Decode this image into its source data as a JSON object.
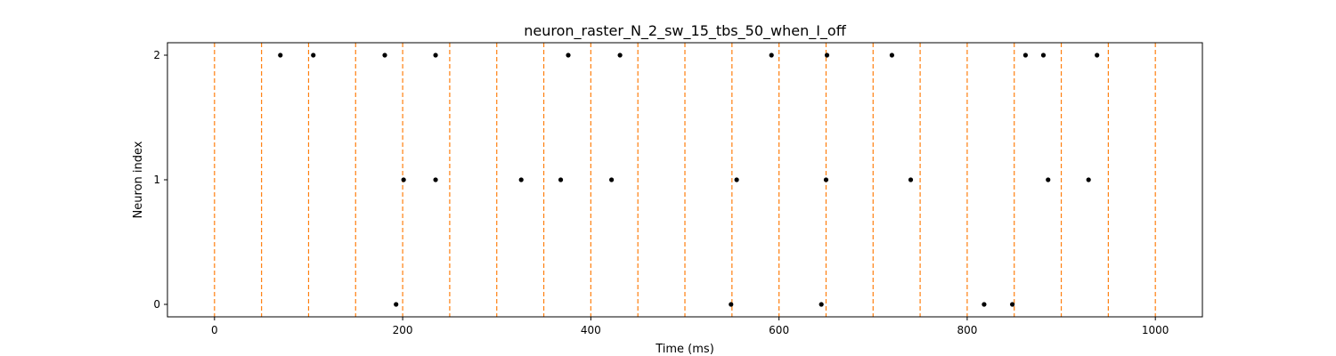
{
  "chart_data": {
    "type": "scatter",
    "title": "neuron_raster_N_2_sw_15_tbs_50_when_I_off",
    "xlabel": "Time (ms)",
    "ylabel": "Neuron index",
    "xlim": [
      -50,
      1050
    ],
    "ylim": [
      -0.1,
      2.1
    ],
    "x_ticks": [
      0,
      200,
      400,
      600,
      800,
      1000
    ],
    "y_ticks": [
      0,
      1,
      2
    ],
    "grid": false,
    "legend": "none",
    "point_color": "#000000",
    "boundary_color": "#ff7f0e",
    "boundary_style": "dashed",
    "time_bin_boundaries": [
      0,
      50,
      100,
      150,
      200,
      250,
      300,
      350,
      400,
      450,
      500,
      550,
      600,
      650,
      700,
      750,
      800,
      850,
      900,
      950,
      1000
    ],
    "series": [
      {
        "neuron": 0,
        "spike_times": [
          193,
          549,
          645,
          818,
          848
        ]
      },
      {
        "neuron": 1,
        "spike_times": [
          201,
          235,
          326,
          368,
          422,
          555,
          650,
          740,
          886,
          929
        ]
      },
      {
        "neuron": 2,
        "spike_times": [
          70,
          105,
          181,
          235,
          376,
          431,
          592,
          651,
          720,
          862,
          881,
          938
        ]
      }
    ]
  }
}
